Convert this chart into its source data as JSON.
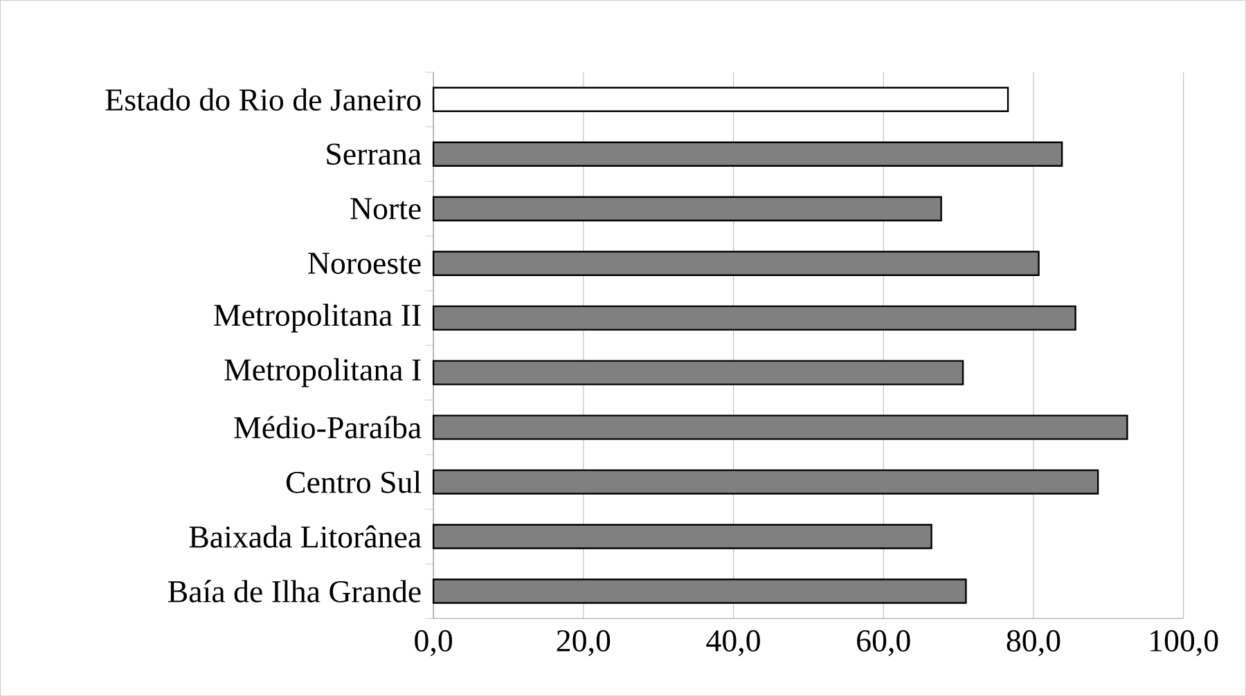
{
  "chart_data": {
    "type": "bar",
    "orientation": "horizontal",
    "categories": [
      "Estado do Rio de Janeiro",
      "Serrana",
      "Norte",
      "Noroeste",
      "Metropolitana II",
      "Metropolitana I",
      "Médio-Paraíba",
      "Centro Sul",
      "Baixada Litorânea",
      "Baía de Ilha Grande"
    ],
    "values": [
      76.6,
      83.8,
      67.7,
      80.7,
      85.6,
      70.6,
      92.5,
      88.6,
      66.4,
      71.0
    ],
    "colors": [
      "#ffffff",
      "#808080",
      "#808080",
      "#808080",
      "#808080",
      "#808080",
      "#808080",
      "#808080",
      "#808080",
      "#808080"
    ],
    "xlim": [
      0,
      100
    ],
    "xticks": [
      {
        "value": 0,
        "label": "0,0"
      },
      {
        "value": 20,
        "label": "20,0"
      },
      {
        "value": 40,
        "label": "40,0"
      },
      {
        "value": 60,
        "label": "60,0"
      },
      {
        "value": 80,
        "label": "80,0"
      },
      {
        "value": 100,
        "label": "100,0"
      }
    ],
    "grid": "x"
  }
}
